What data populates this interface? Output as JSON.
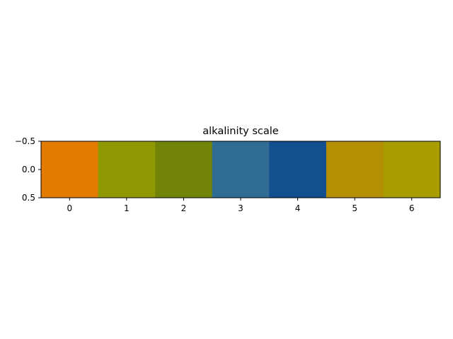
{
  "chart_data": {
    "type": "heatmap",
    "title": "alkalinity scale",
    "xlabel": "",
    "ylabel": "",
    "x": [
      0,
      1,
      2,
      3,
      4,
      5,
      6
    ],
    "colors": [
      "#e37b00",
      "#8f9902",
      "#718408",
      "#2f6b93",
      "#114f8f",
      "#b48f04",
      "#a89c00"
    ],
    "xlim": [
      -0.5,
      6.5
    ],
    "ylim": [
      0.5,
      -0.5
    ],
    "x_ticks": [
      0,
      1,
      2,
      3,
      4,
      5,
      6
    ],
    "y_ticks": [
      -0.5,
      0.0,
      0.5
    ],
    "x_tick_labels": [
      "0",
      "1",
      "2",
      "3",
      "4",
      "5",
      "6"
    ],
    "y_tick_labels": [
      "−0.5",
      "0.0",
      "0.5"
    ],
    "grid": false,
    "legend": "none"
  }
}
